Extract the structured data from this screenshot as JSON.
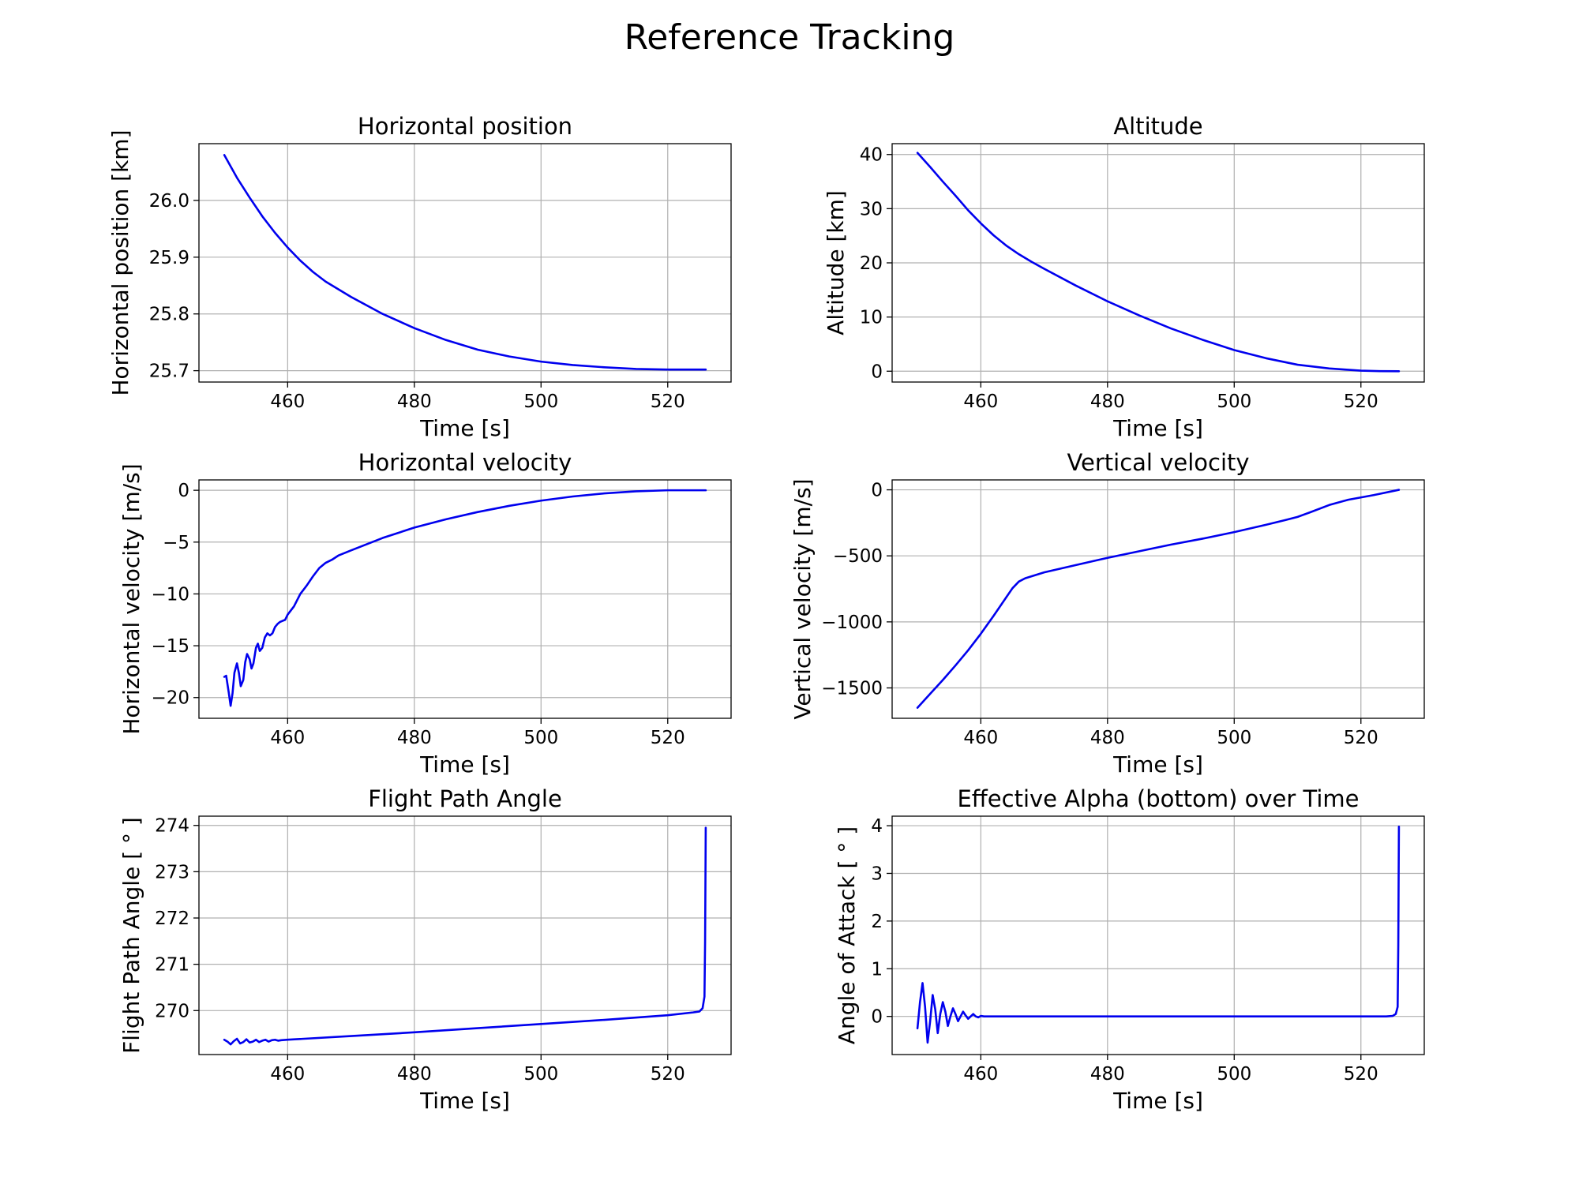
{
  "figure": {
    "suptitle": "Reference Tracking"
  },
  "style": {
    "line_color": "#0000ee",
    "grid": true
  },
  "chart_data": [
    {
      "type": "line",
      "title": "Horizontal position",
      "xlabel": "Time [s]",
      "ylabel": "Horizontal position [km]",
      "xlim": [
        446,
        530
      ],
      "ylim": [
        25.68,
        26.1
      ],
      "xticks": [
        460,
        480,
        500,
        520
      ],
      "yticks": [
        25.7,
        25.8,
        25.9,
        26.0
      ],
      "ytick_labels": [
        "25.7",
        "25.8",
        "25.9",
        "26.0"
      ],
      "series": [
        {
          "x": [
            450,
            452,
            454,
            456,
            458,
            460,
            462,
            464,
            466,
            470,
            475,
            480,
            485,
            490,
            495,
            500,
            505,
            510,
            515,
            520,
            526
          ],
          "y": [
            26.08,
            26.04,
            26.005,
            25.972,
            25.943,
            25.917,
            25.894,
            25.874,
            25.857,
            25.83,
            25.8,
            25.775,
            25.754,
            25.737,
            25.725,
            25.716,
            25.71,
            25.706,
            25.703,
            25.702,
            25.702
          ]
        }
      ]
    },
    {
      "type": "line",
      "title": "Altitude",
      "xlabel": "Time [s]",
      "ylabel": "Altitude [km]",
      "xlim": [
        446,
        530
      ],
      "ylim": [
        -2,
        42
      ],
      "xticks": [
        460,
        480,
        500,
        520
      ],
      "yticks": [
        0,
        10,
        20,
        30,
        40
      ],
      "ytick_labels": [
        "0",
        "10",
        "20",
        "30",
        "40"
      ],
      "series": [
        {
          "x": [
            450,
            452,
            454,
            456,
            458,
            460,
            462,
            464,
            466,
            468,
            470,
            475,
            480,
            485,
            490,
            495,
            500,
            505,
            510,
            515,
            520,
            523,
            526
          ],
          "y": [
            40.3,
            37.7,
            35.0,
            32.4,
            29.7,
            27.3,
            25.1,
            23.2,
            21.6,
            20.2,
            18.9,
            15.8,
            12.9,
            10.3,
            7.9,
            5.8,
            3.9,
            2.4,
            1.2,
            0.5,
            0.1,
            0.02,
            0
          ]
        }
      ]
    },
    {
      "type": "line",
      "title": "Horizontal velocity",
      "xlabel": "Time [s]",
      "ylabel": "Horizontal velocity [m/s]",
      "xlim": [
        446,
        530
      ],
      "ylim": [
        -22,
        1
      ],
      "xticks": [
        460,
        480,
        500,
        520
      ],
      "yticks": [
        -20,
        -15,
        -10,
        -5,
        0
      ],
      "ytick_labels": [
        "−20",
        "−15",
        "−10",
        "−5",
        "0"
      ],
      "series": [
        {
          "x": [
            450,
            450.3,
            450.7,
            451.0,
            451.3,
            451.6,
            452.0,
            452.3,
            452.6,
            453.0,
            453.3,
            453.6,
            454.0,
            454.3,
            454.6,
            455.0,
            455.3,
            455.6,
            456.0,
            456.4,
            456.8,
            457.2,
            457.6,
            458.0,
            458.4,
            458.8,
            459.2,
            459.6,
            460.0,
            461.0,
            462.0,
            463.0,
            464.0,
            465.0,
            466.0,
            467.0,
            468.0,
            470.0,
            475.0,
            480.0,
            485.0,
            490.0,
            495.0,
            500.0,
            505.0,
            510.0,
            515.0,
            520.0,
            526.0
          ],
          "y": [
            -18.0,
            -17.9,
            -19.5,
            -20.8,
            -19.6,
            -17.6,
            -16.7,
            -17.6,
            -18.9,
            -18.3,
            -16.6,
            -15.8,
            -16.3,
            -17.2,
            -16.7,
            -15.2,
            -14.8,
            -15.5,
            -15.2,
            -14.2,
            -13.8,
            -14.0,
            -13.8,
            -13.2,
            -12.9,
            -12.7,
            -12.6,
            -12.5,
            -12.0,
            -11.2,
            -10.0,
            -9.2,
            -8.3,
            -7.5,
            -7.0,
            -6.7,
            -6.3,
            -5.8,
            -4.6,
            -3.6,
            -2.8,
            -2.1,
            -1.5,
            -1.0,
            -0.6,
            -0.3,
            -0.1,
            0.0,
            0.0
          ]
        }
      ]
    },
    {
      "type": "line",
      "title": "Vertical velocity",
      "xlabel": "Time [s]",
      "ylabel": "Vertical velocity [m/s]",
      "xlim": [
        446,
        530
      ],
      "ylim": [
        -1730,
        75
      ],
      "xticks": [
        460,
        480,
        500,
        520
      ],
      "yticks": [
        -1500,
        -1000,
        -500,
        0
      ],
      "ytick_labels": [
        "−1500",
        "−1000",
        "−500",
        "0"
      ],
      "series": [
        {
          "x": [
            450,
            452,
            454,
            456,
            458,
            460,
            462,
            464,
            465,
            466,
            467,
            468,
            470,
            475,
            480,
            485,
            490,
            495,
            500,
            505,
            508,
            510,
            512,
            515,
            518,
            522,
            526
          ],
          "y": [
            -1650,
            -1545,
            -1440,
            -1330,
            -1215,
            -1090,
            -955,
            -815,
            -745,
            -695,
            -670,
            -655,
            -625,
            -570,
            -515,
            -465,
            -415,
            -370,
            -320,
            -265,
            -230,
            -205,
            -170,
            -115,
            -75,
            -40,
            0
          ]
        }
      ]
    },
    {
      "type": "line",
      "title": "Flight Path Angle",
      "xlabel": "Time [s]",
      "ylabel": "Flight Path Angle [$^\\circ$]",
      "ylabel_display": "Flight Path Angle [ ° ]",
      "xlim": [
        446,
        530
      ],
      "ylim": [
        269.05,
        274.2
      ],
      "xticks": [
        460,
        480,
        500,
        520
      ],
      "yticks": [
        270,
        271,
        272,
        273,
        274
      ],
      "ytick_labels": [
        "270",
        "271",
        "272",
        "273",
        "274"
      ],
      "series": [
        {
          "x": [
            450,
            450.5,
            451,
            451.5,
            452,
            452.5,
            453,
            453.5,
            454,
            454.5,
            455,
            455.5,
            456,
            456.5,
            457,
            457.5,
            458,
            458.5,
            459,
            460,
            470,
            480,
            490,
            500,
            510,
            520,
            524,
            525,
            525.5,
            525.8,
            525.9,
            526
          ],
          "y": [
            269.37,
            269.33,
            269.27,
            269.34,
            269.39,
            269.29,
            269.32,
            269.38,
            269.31,
            269.33,
            269.37,
            269.32,
            269.35,
            269.37,
            269.33,
            269.36,
            269.37,
            269.35,
            269.36,
            269.37,
            269.45,
            269.53,
            269.62,
            269.71,
            269.8,
            269.9,
            269.96,
            269.98,
            270.05,
            270.3,
            271.5,
            273.95
          ]
        }
      ]
    },
    {
      "type": "line",
      "title": "Effective Alpha (bottom) over Time",
      "xlabel": "Time [s]",
      "ylabel": "Angle of Attack [$^\\circ$]",
      "ylabel_display": "Angle of Attack [ ° ]",
      "xlim": [
        446,
        530
      ],
      "ylim": [
        -0.8,
        4.2
      ],
      "xticks": [
        460,
        480,
        500,
        520
      ],
      "yticks": [
        0,
        1,
        2,
        3,
        4
      ],
      "ytick_labels": [
        "0",
        "1",
        "2",
        "3",
        "4"
      ],
      "series": [
        {
          "x": [
            450,
            450.4,
            450.8,
            451.2,
            451.6,
            452.0,
            452.4,
            452.8,
            453.2,
            453.6,
            454.0,
            454.4,
            454.8,
            455.2,
            455.6,
            456.0,
            456.4,
            456.8,
            457.2,
            457.6,
            458.0,
            458.4,
            458.8,
            459.2,
            459.6,
            460.0,
            460.5,
            461.0,
            462.0,
            470,
            490,
            510,
            524,
            525,
            525.5,
            525.8,
            525.9,
            526
          ],
          "y": [
            -0.25,
            0.3,
            0.7,
            0.2,
            -0.55,
            -0.1,
            0.45,
            0.15,
            -0.35,
            0.05,
            0.3,
            0.1,
            -0.2,
            0.0,
            0.17,
            0.05,
            -0.1,
            0.0,
            0.1,
            0.02,
            -0.05,
            0.0,
            0.05,
            0.0,
            -0.02,
            0.01,
            0.0,
            0.0,
            0.0,
            0.0,
            0.0,
            0.0,
            0.0,
            0.01,
            0.05,
            0.2,
            1.5,
            3.98
          ]
        }
      ]
    }
  ]
}
